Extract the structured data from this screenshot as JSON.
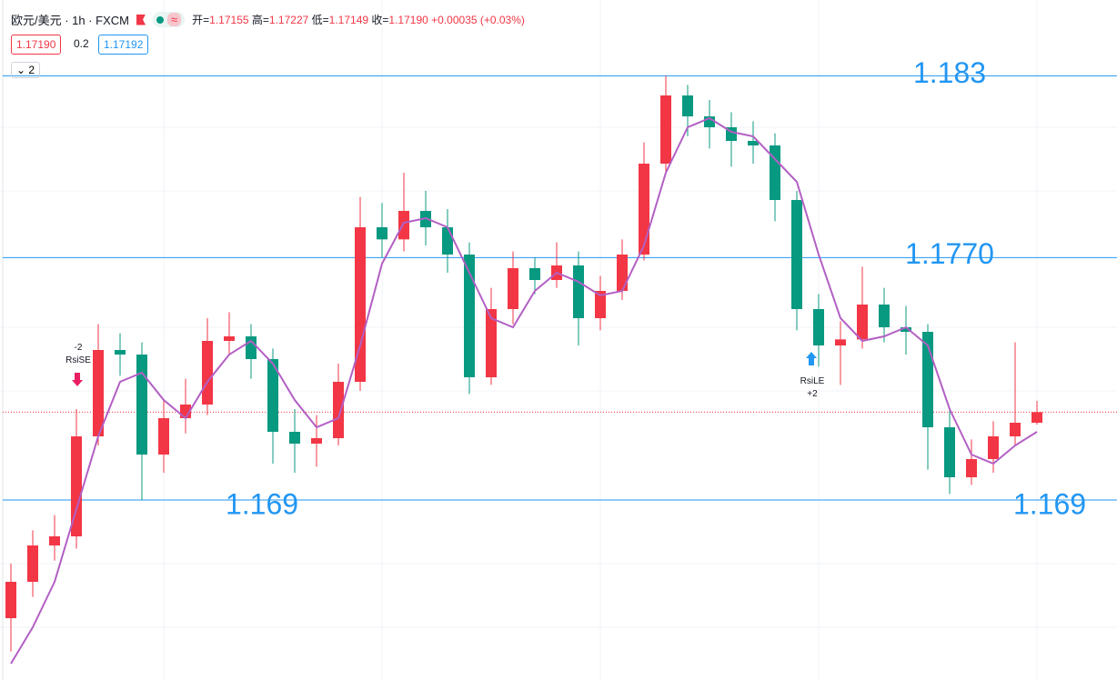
{
  "header": {
    "symbol": "欧元/美元 · 1h · FXCM",
    "ohlc": [
      {
        "label": "开=",
        "value": "1.17155"
      },
      {
        "label": "高=",
        "value": "1.17227"
      },
      {
        "label": "低=",
        "value": "1.17149"
      },
      {
        "label": "收=",
        "value": "1.17190"
      }
    ],
    "change": "+0.00035 (+0.03%)",
    "bid": "1.17190",
    "spread": "0.2",
    "ask": "1.17192",
    "indicators": "2"
  },
  "chart_data": {
    "type": "candlestick",
    "open": [
      1.1651,
      1.1663,
      1.1675,
      1.1678,
      1.1711,
      1.17395,
      1.1738,
      1.1705,
      1.1717,
      1.17215,
      1.17425,
      1.1744,
      1.17365,
      1.17125,
      1.17086,
      1.17104,
      1.1729,
      1.178,
      1.1776,
      1.17854,
      1.178,
      1.1771,
      1.17305,
      1.1753,
      1.17665,
      1.17626,
      1.17674,
      1.175,
      1.1759,
      1.1771,
      1.1801,
      1.18235,
      1.18166,
      1.1813,
      1.18085,
      1.1807,
      1.1789,
      1.1753,
      1.1741,
      1.1743,
      1.17545,
      1.1747,
      1.17455,
      1.1714,
      1.16975,
      1.17035,
      1.1711,
      1.17155
    ],
    "high": [
      1.1669,
      1.168,
      1.1685,
      1.172,
      1.1748,
      1.1745,
      1.1742,
      1.1723,
      1.173,
      1.175,
      1.1752,
      1.1748,
      1.174,
      1.172,
      1.1718,
      1.1735,
      1.179,
      1.1788,
      1.1798,
      1.1792,
      1.1786,
      1.1775,
      1.176,
      1.1772,
      1.177,
      1.1775,
      1.1772,
      1.1764,
      1.1776,
      1.1808,
      1.183,
      1.1827,
      1.1822,
      1.1818,
      1.1815,
      1.1811,
      1.1792,
      1.1758,
      1.1749,
      1.1767,
      1.176,
      1.1754,
      1.1748,
      1.172,
      1.171,
      1.1716,
      1.1742,
      1.17227
    ],
    "low": [
      1.164,
      1.1658,
      1.167,
      1.1674,
      1.1708,
      1.1731,
      1.169,
      1.1699,
      1.1712,
      1.1718,
      1.1738,
      1.173,
      1.1702,
      1.1699,
      1.1701,
      1.1708,
      1.1726,
      1.177,
      1.1772,
      1.1774,
      1.1765,
      1.1725,
      1.1728,
      1.1748,
      1.1758,
      1.176,
      1.1741,
      1.1746,
      1.1756,
      1.1769,
      1.1798,
      1.181,
      1.1806,
      1.18,
      1.1801,
      1.1782,
      1.1746,
      1.1734,
      1.1728,
      1.174,
      1.1742,
      1.1738,
      1.17,
      1.1692,
      1.1695,
      1.1699,
      1.1708,
      1.17149
    ],
    "close": [
      1.1663,
      1.1675,
      1.1678,
      1.1711,
      1.17395,
      1.1738,
      1.1705,
      1.1717,
      1.17215,
      1.17425,
      1.1744,
      1.17365,
      1.17125,
      1.17086,
      1.17104,
      1.1729,
      1.178,
      1.1776,
      1.17854,
      1.178,
      1.1771,
      1.17305,
      1.1753,
      1.17665,
      1.17626,
      1.17674,
      1.175,
      1.1759,
      1.1771,
      1.1801,
      1.18235,
      1.18166,
      1.1813,
      1.18085,
      1.1807,
      1.1789,
      1.1753,
      1.1741,
      1.1743,
      1.17545,
      1.1747,
      1.17455,
      1.1714,
      1.16975,
      1.17035,
      1.1711,
      1.17155,
      1.1719
    ],
    "up_color": "#f23645",
    "down_color": "#089981",
    "ma": {
      "color": "#b35fc4",
      "values": [
        1.1636,
        1.1648,
        1.1663,
        1.1687,
        1.1711,
        1.1729,
        1.1732,
        1.1723,
        1.1717,
        1.1729,
        1.1738,
        1.17425,
        1.1735,
        1.1723,
        1.1714,
        1.1717,
        1.1741,
        1.1768,
        1.17815,
        1.1783,
        1.178,
        1.1765,
        1.175,
        1.1747,
        1.1759,
        1.1765,
        1.1762,
        1.17575,
        1.1759,
        1.1774,
        1.1798,
        1.1813,
        1.1816,
        1.18115,
        1.181,
        1.18025,
        1.1795,
        1.1771,
        1.175,
        1.17425,
        1.1744,
        1.1747,
        1.1741,
        1.172,
        1.1705,
        1.1702,
        1.1708,
        1.17125
      ]
    },
    "ylim": [
      1.16306,
      1.1855
    ],
    "level_color": "#2196f3",
    "levels": [
      {
        "value": 1.183,
        "labels": [
          "1.183"
        ]
      },
      {
        "value": 1.177,
        "labels": [
          "1.1770"
        ]
      },
      {
        "value": 1.169,
        "labels": [
          "1.169",
          "1.169"
        ]
      }
    ],
    "signals": [
      {
        "qty": "-2",
        "label": "RsiSE"
      },
      {
        "label": "RsiLE",
        "qty": "+2"
      }
    ]
  }
}
